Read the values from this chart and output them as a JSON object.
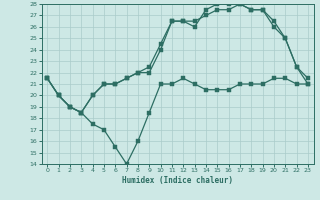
{
  "xlabel": "Humidex (Indice chaleur)",
  "background_color": "#cde8e5",
  "line_color": "#2d6e63",
  "grid_color": "#b0d4d0",
  "xlim": [
    -0.5,
    23.5
  ],
  "ylim": [
    14,
    28
  ],
  "yticks": [
    14,
    15,
    16,
    17,
    18,
    19,
    20,
    21,
    22,
    23,
    24,
    25,
    26,
    27,
    28
  ],
  "xticks": [
    0,
    1,
    2,
    3,
    4,
    5,
    6,
    7,
    8,
    9,
    10,
    11,
    12,
    13,
    14,
    15,
    16,
    17,
    18,
    19,
    20,
    21,
    22,
    23
  ],
  "s1_x": [
    0,
    1,
    2,
    3,
    4,
    5,
    6,
    7,
    8,
    9,
    10,
    11,
    12,
    13,
    14,
    15,
    16,
    17,
    18,
    19,
    20,
    21,
    22,
    23
  ],
  "s1_y": [
    21.5,
    20.0,
    19.0,
    18.5,
    17.5,
    17.0,
    15.5,
    14.0,
    16.0,
    18.5,
    21.0,
    21.0,
    21.5,
    21.0,
    20.5,
    20.5,
    20.5,
    21.0,
    21.0,
    21.0,
    21.5,
    21.5,
    21.0,
    21.0
  ],
  "s2_x": [
    0,
    1,
    2,
    3,
    4,
    5,
    6,
    7,
    8,
    9,
    10,
    11,
    12,
    13,
    14,
    15,
    16,
    17,
    18,
    19,
    20,
    21,
    22,
    23
  ],
  "s2_y": [
    21.5,
    20.0,
    19.0,
    18.5,
    20.0,
    21.0,
    21.0,
    21.5,
    22.0,
    22.5,
    24.5,
    26.5,
    26.5,
    26.5,
    27.0,
    27.5,
    27.5,
    28.0,
    27.5,
    27.5,
    26.5,
    25.0,
    22.5,
    21.0
  ],
  "s3_x": [
    0,
    1,
    2,
    3,
    4,
    5,
    6,
    7,
    8,
    9,
    10,
    11,
    12,
    13,
    14,
    15,
    16,
    17,
    18,
    19,
    20,
    21,
    22,
    23
  ],
  "s3_y": [
    21.5,
    20.0,
    19.0,
    18.5,
    20.0,
    21.0,
    21.0,
    21.5,
    22.0,
    22.0,
    24.0,
    26.5,
    26.5,
    26.0,
    27.5,
    28.0,
    28.0,
    28.0,
    27.5,
    27.5,
    26.0,
    25.0,
    22.5,
    21.5
  ]
}
